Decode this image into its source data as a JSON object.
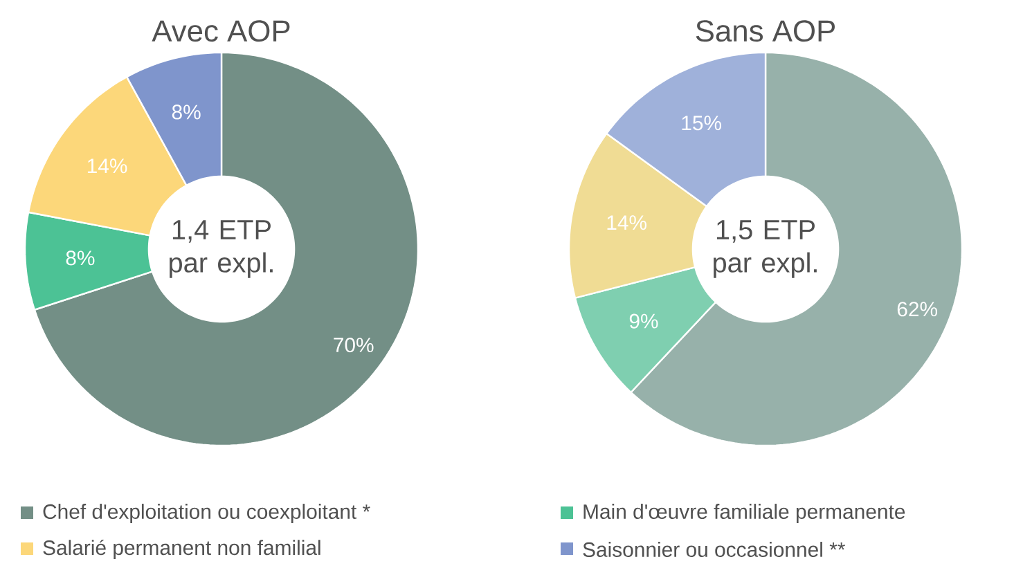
{
  "chart_data": [
    {
      "type": "donut",
      "title": "Avec AOP",
      "categories": [
        "Chef d'exploitation ou coexploitant *",
        "Main d'œuvre familiale permanente",
        "Salarié permanent non familial",
        "Saisonnier ou occasionnel **"
      ],
      "values": [
        70,
        8,
        14,
        8
      ],
      "value_labels": [
        "70%",
        "8%",
        "14%",
        "8%"
      ],
      "colors": [
        "#738f86",
        "#4cc295",
        "#fcd77a",
        "#7f95cc"
      ],
      "annotations": [
        "1,4 ETP par expl."
      ],
      "legend": "bottom"
    },
    {
      "type": "donut",
      "title": "Sans AOP",
      "categories": [
        null,
        null,
        null,
        null
      ],
      "values": [
        62,
        9,
        14,
        15
      ],
      "value_labels": [
        "62%",
        "9%",
        "14%",
        "15%"
      ],
      "colors": [
        "#97b1aa",
        "#7fcfb0",
        "#f0dc94",
        "#9fb1da"
      ],
      "annotations": [
        "1,5 ETP par expl."
      ]
    }
  ]
}
